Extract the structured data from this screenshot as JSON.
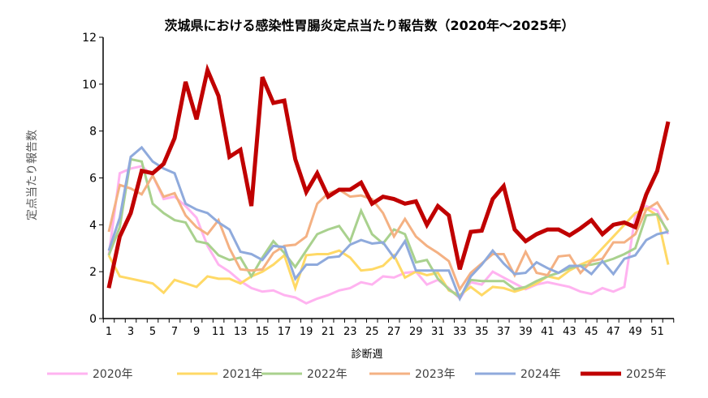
{
  "chart_data": {
    "type": "line",
    "title": "茨城県における感染性胃腸炎定点当たり報告数（2020年～2025年）",
    "xlabel": "診断週",
    "ylabel": "定点当たり報告数",
    "ylim": [
      0,
      12
    ],
    "yticks": [
      0,
      2,
      4,
      6,
      8,
      10,
      12
    ],
    "x": [
      1,
      2,
      3,
      4,
      5,
      6,
      7,
      8,
      9,
      10,
      11,
      12,
      13,
      14,
      15,
      16,
      17,
      18,
      19,
      20,
      21,
      22,
      23,
      24,
      25,
      26,
      27,
      28,
      29,
      30,
      31,
      32,
      33,
      34,
      35,
      36,
      37,
      38,
      39,
      40,
      41,
      42,
      43,
      44,
      45,
      46,
      47,
      48,
      49,
      50,
      51,
      52
    ],
    "xtick_labels": [
      1,
      3,
      5,
      7,
      9,
      11,
      13,
      15,
      17,
      19,
      21,
      23,
      25,
      27,
      29,
      31,
      33,
      35,
      37,
      39,
      41,
      43,
      45,
      47,
      49,
      51
    ],
    "grid": false,
    "legend": "bottom",
    "series": [
      {
        "name": "2020年",
        "color": "#ffb3f0",
        "width": 3,
        "values": [
          2.7,
          6.2,
          6.4,
          6.5,
          6.1,
          5.1,
          5.2,
          4.8,
          4.3,
          3.1,
          2.3,
          2.0,
          1.6,
          1.3,
          1.15,
          1.2,
          1.0,
          0.9,
          0.65,
          0.85,
          1.0,
          1.2,
          1.3,
          1.55,
          1.45,
          1.8,
          1.75,
          1.95,
          2.0,
          1.45,
          1.65,
          1.3,
          0.85,
          1.55,
          1.45,
          2.0,
          1.75,
          1.5,
          1.25,
          1.45,
          1.55,
          1.45,
          1.35,
          1.15,
          1.05,
          1.3,
          1.15,
          1.35,
          4.4,
          4.8,
          4.6,
          3.6
        ]
      },
      {
        "name": "2021年",
        "color": "#ffd966",
        "width": 3,
        "values": [
          2.7,
          1.8,
          1.7,
          1.6,
          1.5,
          1.1,
          1.65,
          1.5,
          1.35,
          1.8,
          1.7,
          1.7,
          1.5,
          1.8,
          2.0,
          2.3,
          2.7,
          1.3,
          2.7,
          2.75,
          2.75,
          2.9,
          2.6,
          2.05,
          2.1,
          2.25,
          2.7,
          1.75,
          2.0,
          1.85,
          1.95,
          1.2,
          1.0,
          1.35,
          1.0,
          1.35,
          1.3,
          1.15,
          1.3,
          1.5,
          1.8,
          1.7,
          2.05,
          2.3,
          2.5,
          3.0,
          3.5,
          4.0,
          4.5,
          4.7,
          4.4,
          2.3
        ]
      },
      {
        "name": "2022年",
        "color": "#a9d18e",
        "width": 3,
        "values": [
          2.7,
          3.9,
          6.8,
          6.7,
          4.9,
          4.5,
          4.2,
          4.1,
          3.3,
          3.2,
          2.7,
          2.5,
          2.6,
          1.8,
          2.6,
          3.3,
          2.8,
          2.2,
          2.9,
          3.6,
          3.8,
          3.95,
          3.3,
          4.6,
          3.6,
          3.2,
          3.8,
          3.6,
          2.4,
          2.5,
          1.7,
          1.25,
          0.9,
          1.65,
          1.6,
          1.6,
          1.6,
          1.25,
          1.35,
          1.6,
          1.8,
          1.95,
          2.15,
          2.25,
          2.3,
          2.4,
          2.55,
          2.75,
          3.0,
          4.4,
          4.45,
          3.7
        ]
      },
      {
        "name": "2023年",
        "color": "#f4b183",
        "width": 3,
        "values": [
          3.7,
          5.7,
          5.55,
          5.3,
          6.1,
          5.2,
          5.35,
          4.4,
          3.9,
          3.6,
          4.2,
          3.0,
          2.1,
          2.05,
          2.1,
          2.8,
          3.1,
          3.15,
          3.5,
          4.9,
          5.35,
          5.5,
          5.2,
          5.25,
          5.1,
          4.5,
          3.5,
          4.25,
          3.5,
          3.1,
          2.8,
          2.45,
          1.25,
          1.95,
          2.35,
          2.75,
          2.75,
          1.85,
          2.85,
          1.95,
          1.85,
          2.65,
          2.7,
          1.95,
          2.45,
          2.55,
          3.25,
          3.25,
          3.6,
          4.65,
          4.95,
          4.2
        ]
      },
      {
        "name": "2024年",
        "color": "#8faadc",
        "width": 3,
        "values": [
          2.9,
          4.3,
          6.9,
          7.3,
          6.7,
          6.4,
          6.2,
          4.9,
          4.65,
          4.5,
          4.1,
          3.8,
          2.85,
          2.75,
          2.5,
          3.1,
          3.05,
          1.7,
          2.3,
          2.3,
          2.6,
          2.65,
          3.15,
          3.35,
          3.2,
          3.25,
          2.6,
          3.3,
          2.05,
          2.05,
          2.05,
          2.05,
          0.85,
          1.8,
          2.3,
          2.9,
          2.35,
          1.9,
          1.95,
          2.4,
          2.15,
          1.95,
          2.25,
          2.25,
          1.9,
          2.45,
          1.9,
          2.55,
          2.7,
          3.35,
          3.6,
          3.7
        ]
      },
      {
        "name": "2025年",
        "color": "#c00000",
        "width": 5,
        "values": [
          1.3,
          3.5,
          4.5,
          6.3,
          6.2,
          6.6,
          7.7,
          10.1,
          8.5,
          10.6,
          9.5,
          6.9,
          7.2,
          4.8,
          10.3,
          9.2,
          9.3,
          6.8,
          5.4,
          6.2,
          5.2,
          5.5,
          5.5,
          5.8,
          4.9,
          5.2,
          5.1,
          4.9,
          5.0,
          4.0,
          4.8,
          4.4,
          2.1,
          3.7,
          3.75,
          5.1,
          5.65,
          3.8,
          3.3,
          3.6,
          3.8,
          3.8,
          3.55,
          3.85,
          4.2,
          3.6,
          4.0,
          4.1,
          3.9,
          5.3,
          6.3,
          8.4
        ]
      }
    ]
  }
}
